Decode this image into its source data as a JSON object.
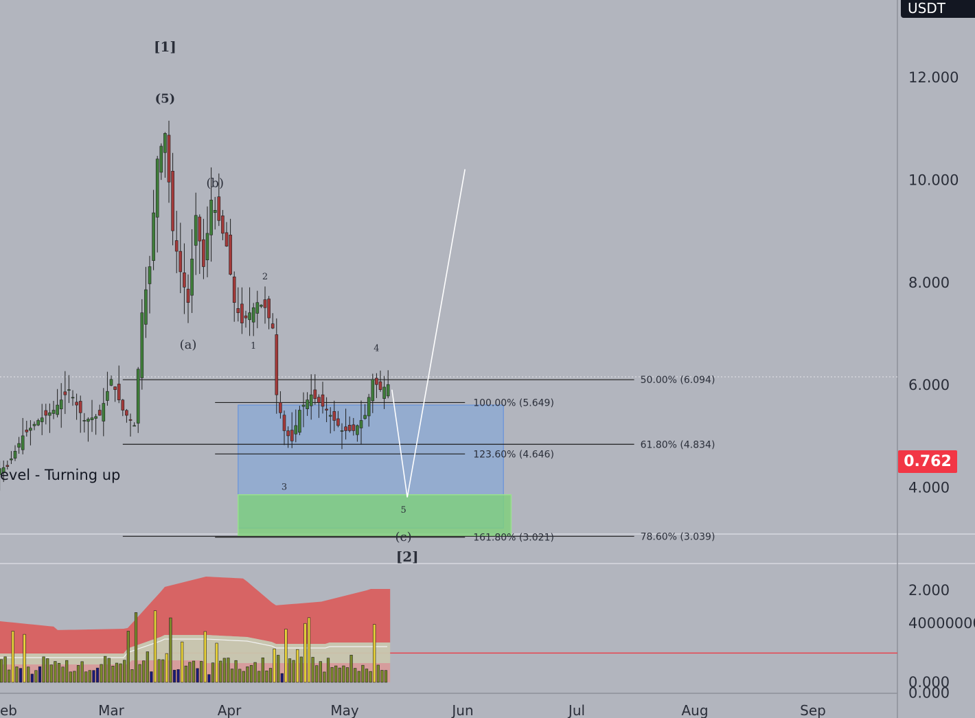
{
  "header": {
    "currency": "USDT"
  },
  "current_price": {
    "label": "0.762",
    "value": 0.762,
    "color": "#f23645"
  },
  "indicator": {
    "label": "evel - Turning up"
  },
  "colors": {
    "up": "#3f7d3a",
    "down": "#a33a3a",
    "wick": "#1e1e1e",
    "target_box": "#8aa9d4",
    "support_box": "#7ed17a",
    "volume_band_high": "#d9605f",
    "volume_band_mid": "#c9c6ae",
    "volume_band_low": "#d99a98",
    "volume_bar": "#7a8a2a",
    "volume_bar_hi": "#e8d23a",
    "volume_bar_down": "#1a1a7a"
  },
  "chart_data": [
    {
      "type": "candlestick",
      "y_axis": {
        "ticks": [
          "12.000",
          "10.000",
          "8.000",
          "6.000",
          "4.000",
          "2.000",
          "0.000"
        ],
        "range": [
          -0.05,
          13.85
        ]
      },
      "x_axis": {
        "ticks": [
          "eb",
          "Mar",
          "Apr",
          "May",
          "Jun",
          "Jul",
          "Aug",
          "Sep"
        ]
      },
      "series_points": [
        [
          "Jan 23",
          4.6
        ],
        [
          "Jan 28",
          4.3
        ],
        [
          "Feb 2",
          4.4
        ],
        [
          "Feb 6",
          5.0
        ],
        [
          "Feb 10",
          5.3
        ],
        [
          "Feb 14",
          5.5
        ],
        [
          "Feb 18",
          5.9
        ],
        [
          "Feb 22",
          5.3
        ],
        [
          "Feb 26",
          5.4
        ],
        [
          "Mar 1",
          6.1
        ],
        [
          "Mar 4",
          5.5
        ],
        [
          "Mar 7",
          5.2
        ],
        [
          "Mar 9",
          7.4
        ],
        [
          "Mar 11",
          8.3
        ],
        [
          "Mar 13",
          10.4
        ],
        [
          "Mar 15",
          10.9
        ],
        [
          "Mar 17",
          9.0
        ],
        [
          "Mar 19",
          8.2
        ],
        [
          "Mar 21",
          7.6
        ],
        [
          "Mar 23",
          9.3
        ],
        [
          "Mar 25",
          8.3
        ],
        [
          "Mar 27",
          9.6
        ],
        [
          "Mar 29",
          9.2
        ],
        [
          "Mar 31",
          8.7
        ],
        [
          "Apr 2",
          7.6
        ],
        [
          "Apr 4",
          7.2
        ],
        [
          "Apr 8",
          7.6
        ],
        [
          "Apr 10",
          7.5
        ],
        [
          "Apr 12",
          7.1
        ],
        [
          "Apr 13",
          5.8
        ],
        [
          "Apr 15",
          5.1
        ],
        [
          "Apr 17",
          4.9
        ],
        [
          "Apr 19",
          5.5
        ],
        [
          "Apr 22",
          5.8
        ],
        [
          "Apr 26",
          5.5
        ],
        [
          "Apr 30",
          5.1
        ],
        [
          "May 3",
          5.1
        ],
        [
          "May 6",
          5.4
        ],
        [
          "May 8",
          6.1
        ],
        [
          "May 10",
          5.9
        ],
        [
          "May 12",
          6.0
        ]
      ],
      "waves": [
        {
          "label": "[1]",
          "date": "Mar 15",
          "price": 12.5
        },
        {
          "label": "(5)",
          "date": "Mar 15",
          "price": 11.5
        },
        {
          "label": "(b)",
          "date": "Mar 28",
          "price": 9.85
        },
        {
          "label": "(a)",
          "date": "Mar 21",
          "price": 6.7
        },
        {
          "label": "2",
          "date": "Apr 10",
          "price": 8.05
        },
        {
          "label": "1",
          "date": "Apr 7",
          "price": 6.7
        },
        {
          "label": "3",
          "date": "Apr 15",
          "price": 3.95
        },
        {
          "label": "4",
          "date": "May 9",
          "price": 6.65
        },
        {
          "label": "5",
          "date": "May 16",
          "price": 3.5
        },
        {
          "label": "(c)",
          "date": "May 16",
          "price": 2.95
        },
        {
          "label": "[2]",
          "date": "May 17",
          "price": 2.55
        }
      ],
      "fib_levels": [
        {
          "label": "50.00% (6.094)",
          "price": 6.094,
          "start": "Mar 4",
          "end": "Jul 15"
        },
        {
          "label": "61.80% (4.834)",
          "price": 4.834,
          "start": "Mar 4",
          "end": "Jul 15"
        },
        {
          "label": "78.60% (3.039)",
          "price": 3.039,
          "start": "Mar 4",
          "end": "Jul 15"
        }
      ],
      "fib_extensions": [
        {
          "label": "100.00% (5.649)",
          "price": 5.649,
          "start": "Mar 28",
          "end": "Jun 1"
        },
        {
          "label": "123.60% (4.646)",
          "price": 4.646,
          "start": "Mar 28",
          "end": "Jun 1"
        },
        {
          "label": "161.80% (3.021)",
          "price": 3.021,
          "start": "Mar 28",
          "end": "Jun 1"
        }
      ],
      "projection": [
        [
          "May 13",
          5.9
        ],
        [
          "May 17",
          3.8
        ],
        [
          "Jun 1",
          10.2
        ]
      ],
      "target_box": {
        "date_from": "Apr 3",
        "date_to": "Jun 11",
        "price_from": 3.2,
        "price_to": 5.6
      },
      "support_box": {
        "date_from": "Apr 3",
        "date_to": "Jun 13",
        "price_from": 3.05,
        "price_to": 3.85
      }
    },
    {
      "type": "bar",
      "name": "volume",
      "y_axis": {
        "ticks": [
          "40000000",
          "0.000"
        ]
      }
    }
  ]
}
